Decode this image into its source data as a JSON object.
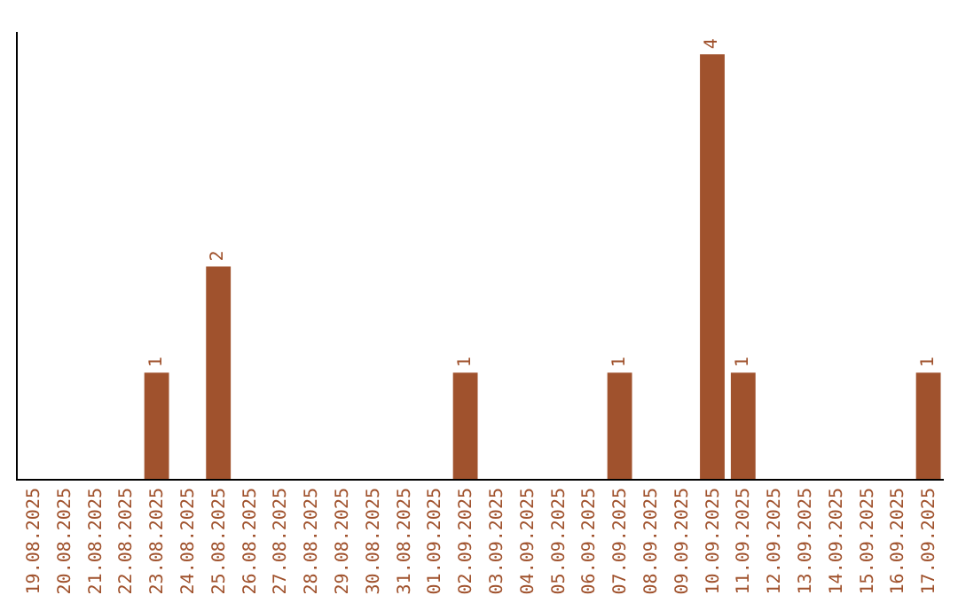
{
  "chart_data": {
    "type": "bar",
    "categories": [
      "19.08.2025",
      "20.08.2025",
      "21.08.2025",
      "22.08.2025",
      "23.08.2025",
      "24.08.2025",
      "25.08.2025",
      "26.08.2025",
      "27.08.2025",
      "28.08.2025",
      "29.08.2025",
      "30.08.2025",
      "31.08.2025",
      "01.09.2025",
      "02.09.2025",
      "03.09.2025",
      "04.09.2025",
      "05.09.2025",
      "06.09.2025",
      "07.09.2025",
      "08.09.2025",
      "09.09.2025",
      "10.09.2025",
      "11.09.2025",
      "12.09.2025",
      "13.09.2025",
      "14.09.2025",
      "15.09.2025",
      "16.09.2025",
      "17.09.2025"
    ],
    "values": [
      0,
      0,
      0,
      0,
      1,
      0,
      2,
      0,
      0,
      0,
      0,
      0,
      0,
      0,
      1,
      0,
      0,
      0,
      0,
      1,
      0,
      0,
      4,
      1,
      0,
      0,
      0,
      0,
      0,
      1
    ],
    "value_labels": [
      null,
      null,
      null,
      null,
      "1",
      null,
      "2",
      null,
      null,
      null,
      null,
      null,
      null,
      null,
      "1",
      null,
      null,
      null,
      null,
      "1",
      null,
      null,
      "4",
      "1",
      null,
      null,
      null,
      null,
      null,
      "1"
    ],
    "color": "#a0522d",
    "tick_labels": "x",
    "grid": false,
    "legend": false
  }
}
